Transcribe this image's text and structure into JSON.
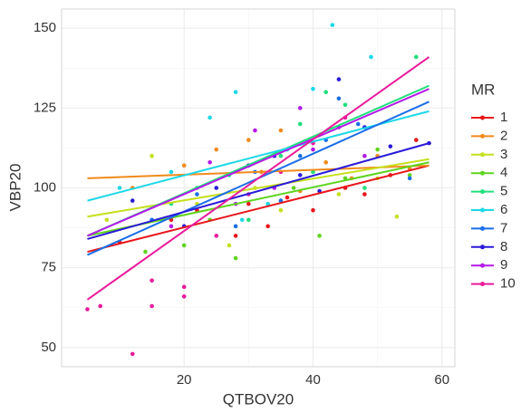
{
  "chart_data": {
    "type": "scatter",
    "x_label": "QTBOV20",
    "y_label": "VBP20",
    "legend_title": "MR",
    "legend": "right",
    "grid": true,
    "xlim": [
      1,
      62
    ],
    "xticks": [
      20,
      40,
      60
    ],
    "ylim": [
      44,
      156
    ],
    "yticks": [
      50,
      75,
      100,
      125,
      150
    ],
    "series": [
      {
        "name": "1",
        "color": "#e8161a",
        "x": [
          10,
          18,
          22,
          28,
          30,
          33,
          36,
          40,
          45,
          48,
          52,
          56
        ],
        "y": [
          83,
          90,
          93,
          85,
          95,
          88,
          97,
          93,
          100,
          98,
          104,
          115
        ],
        "fit": {
          "x": [
            5,
            58
          ],
          "y": [
            80,
            107
          ]
        }
      },
      {
        "name": "2",
        "color": "#f08a1a",
        "x": [
          12,
          20,
          25,
          30,
          32,
          35,
          38,
          42,
          46,
          50,
          55
        ],
        "y": [
          100,
          107,
          112,
          115,
          105,
          118,
          99,
          108,
          103,
          110,
          106
        ],
        "fit": {
          "x": [
            5,
            58
          ],
          "y": [
            103,
            107
          ]
        }
      },
      {
        "name": "3",
        "color": "#c6e01c",
        "x": [
          8,
          15,
          22,
          27,
          31,
          35,
          40,
          44,
          50,
          53
        ],
        "y": [
          90,
          110,
          95,
          82,
          100,
          93,
          105,
          98,
          103,
          91
        ],
        "fit": {
          "x": [
            5,
            58
          ],
          "y": [
            91,
            109
          ]
        }
      },
      {
        "name": "4",
        "color": "#5ed41c",
        "x": [
          14,
          20,
          24,
          28,
          33,
          37,
          41,
          45,
          50,
          55
        ],
        "y": [
          80,
          82,
          90,
          78,
          95,
          100,
          85,
          103,
          112,
          104
        ],
        "fit": {
          "x": [
            5,
            58
          ],
          "y": [
            85,
            108
          ]
        }
      },
      {
        "name": "5",
        "color": "#1ee07a",
        "x": [
          18,
          22,
          27,
          30,
          35,
          38,
          40,
          42,
          45,
          48,
          56
        ],
        "y": [
          95,
          100,
          104,
          90,
          110,
          120,
          105,
          130,
          126,
          100,
          141
        ],
        "fit": {
          "x": [
            5,
            58
          ],
          "y": [
            85,
            132
          ]
        }
      },
      {
        "name": "6",
        "color": "#1cd8e8",
        "x": [
          10,
          18,
          24,
          28,
          29,
          33,
          36,
          40,
          43,
          49
        ],
        "y": [
          100,
          105,
          122,
          130,
          90,
          95,
          112,
          131,
          151,
          141
        ],
        "fit": {
          "x": [
            5,
            58
          ],
          "y": [
            96,
            124
          ]
        }
      },
      {
        "name": "7",
        "color": "#1a6ee8",
        "x": [
          15,
          22,
          28,
          31,
          35,
          38,
          42,
          44,
          47,
          55
        ],
        "y": [
          90,
          98,
          88,
          105,
          96,
          110,
          115,
          128,
          120,
          103
        ],
        "fit": {
          "x": [
            5,
            58
          ],
          "y": [
            79,
            127
          ]
        }
      },
      {
        "name": "8",
        "color": "#2a1ad8",
        "x": [
          12,
          20,
          25,
          30,
          34,
          38,
          41,
          44,
          48,
          52,
          58
        ],
        "y": [
          96,
          88,
          100,
          107,
          110,
          104,
          99,
          134,
          119,
          113,
          114
        ],
        "fit": {
          "x": [
            5,
            58
          ],
          "y": [
            84,
            114
          ]
        }
      },
      {
        "name": "9",
        "color": "#b41ae8",
        "x": [
          18,
          24,
          28,
          31,
          34,
          38,
          40,
          44,
          48
        ],
        "y": [
          88,
          108,
          95,
          118,
          100,
          125,
          112,
          119,
          110
        ],
        "fit": {
          "x": [
            5,
            58
          ],
          "y": [
            85,
            131
          ]
        }
      },
      {
        "name": "10",
        "color": "#e81a9a",
        "x": [
          5,
          7,
          12,
          15,
          15,
          20,
          20,
          25,
          30,
          35,
          40,
          45
        ],
        "y": [
          62,
          63,
          48,
          71,
          63,
          69,
          66,
          85,
          98,
          105,
          114,
          122
        ],
        "fit": {
          "x": [
            5,
            58
          ],
          "y": [
            65,
            141
          ]
        }
      }
    ]
  }
}
